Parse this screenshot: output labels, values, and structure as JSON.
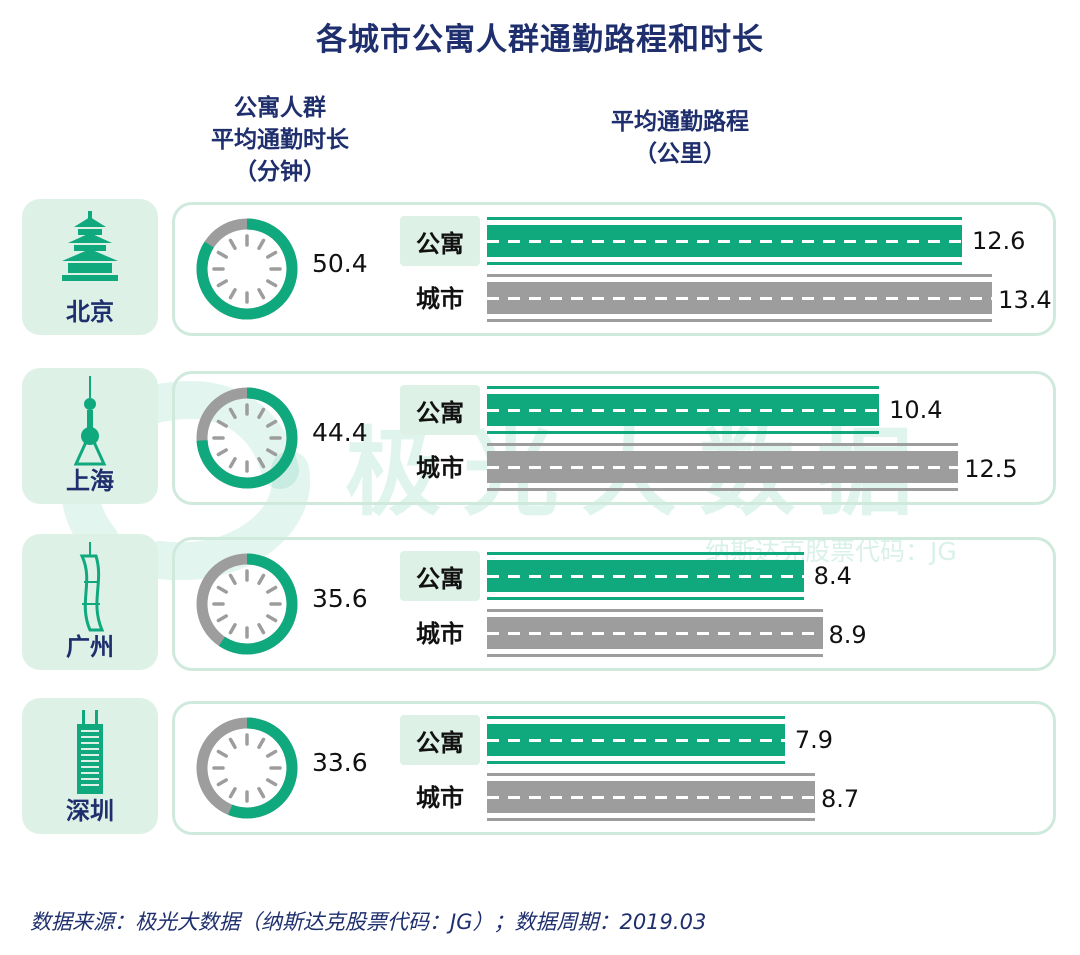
{
  "title": "各城市公寓人群通勤路程和时长",
  "headers": {
    "duration_lines": [
      "公寓人群",
      "平均通勤时长",
      "（分钟）"
    ],
    "distance_lines": [
      "平均通勤路程",
      "（公里）"
    ]
  },
  "labels": {
    "apartment": "公寓",
    "city": "城市"
  },
  "watermark": {
    "main": "极光大数据",
    "sub": "纳斯达克股票代码：JG"
  },
  "footer": "数据来源：极光大数据（纳斯达克股票代码：JG）；数据周期：2019.03",
  "colors": {
    "green": "#10a97e",
    "gray": "#9d9d9d",
    "navy": "#1f2f6e",
    "mint": "#def1e7"
  },
  "chart_data": {
    "type": "bar",
    "categories": [
      "北京",
      "上海",
      "广州",
      "深圳"
    ],
    "city_icons": [
      "temple-of-heaven-icon",
      "oriental-pearl-tower-icon",
      "canton-tower-icon",
      "skyscraper-icon"
    ],
    "commute_minutes": [
      50.4,
      44.4,
      35.6,
      33.6
    ],
    "series": [
      {
        "name": "公寓",
        "values": [
          12.6,
          10.4,
          8.4,
          7.9
        ]
      },
      {
        "name": "城市",
        "values": [
          13.4,
          12.5,
          8.9,
          8.7
        ]
      }
    ],
    "minutes_labels": [
      "50.4",
      "44.4",
      "35.6",
      "33.6"
    ],
    "apartment_labels": [
      "12.6",
      "10.4",
      "8.4",
      "7.9"
    ],
    "city_labels": [
      "13.4",
      "12.5",
      "8.9",
      "8.7"
    ]
  }
}
